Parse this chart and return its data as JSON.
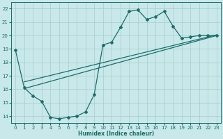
{
  "xlabel": "Humidex (Indice chaleur)",
  "xlim": [
    -0.5,
    23.5
  ],
  "ylim": [
    13.5,
    22.5
  ],
  "xticks": [
    0,
    1,
    2,
    3,
    4,
    5,
    6,
    7,
    8,
    9,
    10,
    11,
    12,
    13,
    14,
    15,
    16,
    17,
    18,
    19,
    20,
    21,
    22,
    23
  ],
  "yticks": [
    14,
    15,
    16,
    17,
    18,
    19,
    20,
    21,
    22
  ],
  "bg_color": "#c8e8ea",
  "grid_color": "#a8cccc",
  "line_color": "#1a6e6a",
  "curve1_x": [
    0,
    1,
    2,
    3,
    4,
    5,
    6,
    7,
    8,
    9,
    10,
    11,
    12,
    13,
    14,
    15,
    16,
    17,
    18,
    19,
    20,
    21,
    22,
    23
  ],
  "curve1_y": [
    18.9,
    16.1,
    15.5,
    15.1,
    13.9,
    13.8,
    13.9,
    14.0,
    14.3,
    15.6,
    19.3,
    19.5,
    20.6,
    21.8,
    21.9,
    21.2,
    21.4,
    21.8,
    20.7,
    19.8,
    19.9,
    20.0,
    20.0,
    20.0
  ],
  "line2_x": [
    1,
    23
  ],
  "line2_y": [
    16.05,
    20.0
  ],
  "line3_x": [
    1,
    23
  ],
  "line3_y": [
    16.55,
    20.05
  ]
}
